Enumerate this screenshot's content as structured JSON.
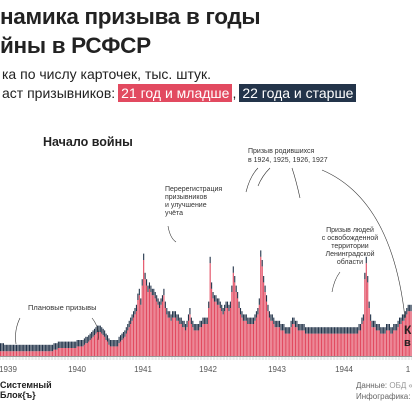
{
  "header": {
    "title_line1": "намика призыва в годы",
    "title_line2": "йны в РСФСР",
    "subtitle1": "ка по числу карточек, тыс. штук.",
    "subtitle2_prefix": "аст призывников:",
    "tag_young": "21 год и младше",
    "tag_old": "22 года и старше",
    "tag_sep": ","
  },
  "colors": {
    "young": "#e24a60",
    "old": "#23344a",
    "axis": "#555555"
  },
  "annotations": {
    "war_start": "Начало войны",
    "planned": "Плановые призывы",
    "rereg": [
      "Перерегистрация",
      "призывников",
      "и улучшение",
      "учёта"
    ],
    "born": [
      "Призыв родившихся",
      "в 1924, 1925, 1926, 1927"
    ],
    "liberated": [
      "Призыв людей",
      "с освобожденной",
      "территории",
      "Ленинградской",
      "области"
    ],
    "edge_letter": "К",
    "edge_letter2": "в"
  },
  "footer": {
    "brand_line1": "Системный",
    "brand_line2": "Блок{ъ}",
    "data_label": "Данные:",
    "data_value": "ОБД «М",
    "info_label": "Инфографика:",
    "info_value": "Са"
  },
  "chart_data": {
    "type": "bar",
    "stacked": true,
    "note": "Monthly values read approximately from the bar heights; no y-axis printed.",
    "x_labels": [
      "1939",
      "1940",
      "1941",
      "1942",
      "1943",
      "1944",
      "1"
    ],
    "series": [
      {
        "name": "21 год и младше",
        "values": [
          3,
          3,
          3,
          3,
          3,
          3,
          3,
          3,
          3,
          3,
          3,
          3,
          3,
          3,
          3,
          3,
          3,
          3,
          3,
          3,
          3,
          3,
          3,
          3,
          3,
          3,
          3,
          3,
          3,
          3,
          3,
          3,
          3,
          3,
          3,
          3,
          3,
          4,
          4,
          4,
          5,
          5,
          5,
          5,
          5,
          5,
          5,
          5,
          5,
          5,
          5,
          5,
          5,
          6,
          6,
          6,
          6,
          6,
          7,
          8,
          8,
          9,
          10,
          11,
          12,
          13,
          14,
          15,
          15,
          15,
          14,
          13,
          12,
          10,
          9,
          7,
          6,
          6,
          6,
          6,
          6,
          6,
          8,
          9,
          10,
          11,
          12,
          14,
          16,
          18,
          20,
          22,
          24,
          26,
          28,
          35,
          38,
          32,
          44,
          60,
          48,
          44,
          40,
          42,
          40,
          38,
          38,
          36,
          34,
          32,
          30,
          32,
          34,
          38,
          30,
          26,
          24,
          24,
          22,
          24,
          24,
          24,
          22,
          22,
          20,
          20,
          18,
          18,
          16,
          18,
          22,
          26,
          20,
          18,
          16,
          16,
          16,
          16,
          18,
          18,
          20,
          20,
          20,
          20,
          30,
          58,
          42,
          36,
          34,
          34,
          32,
          32,
          30,
          28,
          26,
          28,
          30,
          30,
          28,
          30,
          40,
          52,
          46,
          40,
          36,
          30,
          26,
          24,
          22,
          22,
          22,
          20,
          20,
          20,
          20,
          20,
          22,
          24,
          26,
          32,
          62,
          56,
          46,
          40,
          34,
          28,
          24,
          22,
          22,
          20,
          18,
          18,
          18,
          18,
          16,
          16,
          16,
          14,
          14,
          14,
          14,
          18,
          20,
          20,
          18,
          18,
          16,
          16,
          16,
          16,
          16,
          14,
          14,
          14,
          14,
          14,
          14,
          14,
          14,
          14,
          14,
          14,
          14,
          14,
          14,
          14,
          14,
          14,
          14,
          14,
          14,
          14,
          14,
          14,
          14,
          14,
          14,
          14,
          14,
          14,
          14,
          14,
          14,
          14,
          14,
          14,
          14,
          14,
          16,
          16,
          20,
          22,
          48,
          58,
          46,
          30,
          22,
          18,
          18,
          18,
          16,
          16,
          16,
          14,
          14,
          14,
          14,
          16,
          16,
          16,
          14,
          14,
          16,
          16,
          16,
          18,
          20,
          20,
          22,
          22,
          24,
          26,
          28,
          28,
          28
        ]
      },
      {
        "name": "22 года и старше",
        "values": [
          5,
          5,
          5,
          4,
          4,
          4,
          4,
          4,
          4,
          4,
          4,
          4,
          4,
          4,
          4,
          4,
          4,
          4,
          4,
          4,
          4,
          4,
          4,
          4,
          4,
          4,
          4,
          4,
          4,
          4,
          4,
          4,
          4,
          4,
          4,
          4,
          4,
          4,
          4,
          4,
          4,
          4,
          4,
          4,
          4,
          4,
          4,
          4,
          4,
          4,
          4,
          4,
          4,
          4,
          4,
          4,
          4,
          4,
          4,
          4,
          4,
          4,
          4,
          4,
          4,
          4,
          4,
          4,
          4,
          4,
          4,
          4,
          4,
          4,
          4,
          4,
          4,
          4,
          4,
          4,
          4,
          4,
          4,
          4,
          4,
          4,
          4,
          4,
          4,
          4,
          4,
          4,
          4,
          4,
          4,
          4,
          4,
          4,
          4,
          4,
          4,
          4,
          4,
          4,
          4,
          4,
          4,
          4,
          4,
          4,
          4,
          4,
          4,
          4,
          4,
          4,
          4,
          4,
          4,
          4,
          4,
          4,
          4,
          4,
          4,
          4,
          4,
          4,
          4,
          4,
          4,
          4,
          4,
          4,
          4,
          4,
          4,
          4,
          4,
          4,
          4,
          4,
          4,
          4,
          4,
          4,
          4,
          4,
          4,
          4,
          4,
          4,
          4,
          4,
          4,
          4,
          4,
          4,
          4,
          4,
          4,
          4,
          4,
          4,
          4,
          4,
          4,
          4,
          4,
          4,
          4,
          4,
          4,
          4,
          4,
          4,
          4,
          4,
          4,
          4,
          4,
          4,
          4,
          4,
          4,
          4,
          4,
          4,
          4,
          4,
          4,
          4,
          4,
          4,
          4,
          4,
          4,
          4,
          4,
          4,
          4,
          4,
          4,
          4,
          4,
          4,
          4,
          4,
          4,
          4,
          4,
          4,
          4,
          4,
          4,
          4,
          4,
          4,
          4,
          4,
          4,
          4,
          4,
          4,
          4,
          4,
          4,
          4,
          4,
          4,
          4,
          4,
          4,
          4,
          4,
          4,
          4,
          4,
          4,
          4,
          4,
          4,
          4,
          4,
          4,
          4,
          4,
          4,
          4,
          4,
          4,
          4,
          4,
          4,
          4,
          4,
          4,
          4,
          4,
          4,
          4,
          4,
          4,
          4,
          4,
          4,
          4,
          4,
          4,
          4,
          4,
          4,
          4,
          4,
          4,
          4,
          4,
          4,
          4,
          4,
          4,
          4,
          4,
          4,
          4,
          4,
          4,
          4,
          4,
          4,
          4,
          4,
          4,
          4,
          4
        ]
      }
    ]
  }
}
